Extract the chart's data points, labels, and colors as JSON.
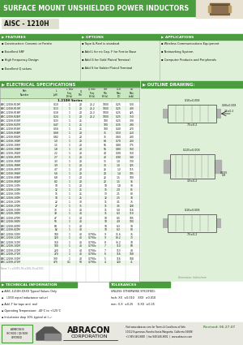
{
  "title": "SURFACE MOUNT UNSHIELDED POWER INDUCTORS",
  "part_family": "AISC - 1210H",
  "header_bg": "#4a9c3f",
  "header_text_color": "#ffffff",
  "page_bg": "#f0f0f0",
  "light_green_bg": "#dff0d8",
  "features_title": "FEATURES",
  "features": [
    "Construction: Ceramic or Ferrite",
    "Excellent SRF",
    "High Frequency Design",
    "Excellent Q values"
  ],
  "options_title": "OPTIONS",
  "options": [
    "Tape & Reel is standard",
    "Add L for no Cap, F for Ferrite Base",
    "Add G for Gold Plated Terminal",
    "Add S for Solder Plated Terminal"
  ],
  "applications_title": "APPLICATIONS",
  "applications": [
    "Wireless Communications Equipment",
    "Networking System",
    "Computer Products and Peripherals"
  ],
  "elec_spec_title": "ELECTRICAL SPECIFICATIONS",
  "outline_title": "OUTLINE DRAWING:",
  "table_col_widths": [
    52,
    14,
    14,
    10,
    14,
    14,
    14,
    13
  ],
  "table_headers": [
    "Part\nNumber",
    "L\n(µH)",
    "L Test\nFreq\n(MHz)",
    "Q\nMin",
    "Q Test\nFreq\n(MHz)",
    "SRF\nMin\n(MHz)",
    "DCR\nMax\n(O)",
    "Idc\nMax\n(mA)"
  ],
  "series_label": "1.210H Series",
  "table_data": [
    [
      "AISC-1210H-R10M",
      "0.10",
      "1",
      "20",
      "25.2",
      "1000",
      "0.25",
      "520"
    ],
    [
      "AISC-1210H-R13M",
      "0.13",
      "1",
      "20",
      "25.2",
      "1000",
      "0.25",
      "480"
    ],
    [
      "AISC-1210H-R18M",
      "0.18",
      "1",
      "20",
      "25.2",
      "1000",
      "0.25",
      "425"
    ],
    [
      "AISC-1210H-R24M",
      "0.24",
      "1",
      "20",
      "25.2",
      "1000",
      "0.25",
      "350"
    ],
    [
      "AISC-1210H-R33M",
      "0.33",
      "1",
      "25",
      "",
      "100",
      "0.25",
      "330"
    ],
    [
      "AISC-1210H-R47M",
      "0.47",
      "1",
      "25",
      "",
      "100",
      "0.35",
      "290"
    ],
    [
      "AISC-1210H-R56M",
      "0.56",
      "1",
      "25",
      "",
      "100",
      "0.40",
      "270"
    ],
    [
      "AISC-1210H-R68M",
      "0.68",
      "1",
      "20",
      "",
      "75",
      "0.50",
      "250"
    ],
    [
      "AISC-1210H-R82M",
      "0.82",
      "1",
      "20",
      "",
      "75",
      "0.60",
      "230"
    ],
    [
      "AISC-1210H-1R0M",
      "1.0",
      "1",
      "20",
      "",
      "64",
      "0.70",
      "200"
    ],
    [
      "AISC-1210H-1R5M",
      "1.5",
      "1",
      "20",
      "",
      "55",
      "0.80",
      "175"
    ],
    [
      "AISC-1210H-1R8M",
      "1.8",
      "1",
      "20",
      "",
      "55",
      "0.80",
      "160"
    ],
    [
      "AISC-1210H-2R2M",
      "2.2",
      "1",
      "20",
      "",
      "44",
      "0.90",
      "150"
    ],
    [
      "AISC-1210H-2R7M",
      "2.7",
      "1",
      "20",
      "",
      "40",
      "0.90",
      "140"
    ],
    [
      "AISC-1210H-3R3M",
      "3.3",
      "1",
      "20",
      "",
      "35",
      "1.0",
      "130"
    ],
    [
      "AISC-1210H-3R9M",
      "3.9",
      "1",
      "20",
      "",
      "30",
      "1.0",
      "125"
    ],
    [
      "AISC-1210H-4R7M",
      "4.7",
      "1",
      "20",
      "",
      "26",
      "1.2",
      "115"
    ],
    [
      "AISC-1210H-5R6M",
      "5.6",
      "1",
      "20",
      "",
      "24",
      "1.4",
      "105"
    ],
    [
      "AISC-1210H-6R8M",
      "6.8",
      "1",
      "20",
      "",
      "22",
      "1.5",
      "100"
    ],
    [
      "AISC-1210H-8R2M",
      "8.2",
      "1",
      "20",
      "",
      "20",
      "1.5",
      "95"
    ],
    [
      "AISC-1210H-100M",
      "10",
      "1",
      "20",
      "",
      "18",
      "1.8",
      "90"
    ],
    [
      "AISC-1210H-120M",
      "12",
      "1",
      "25",
      "",
      "15",
      "2.0",
      "85"
    ],
    [
      "AISC-1210H-150M",
      "15",
      "1",
      "25",
      "",
      "13",
      "2.1",
      "80"
    ],
    [
      "AISC-1210H-180M",
      "18",
      "1",
      "25",
      "",
      "12",
      "2.5",
      "78"
    ],
    [
      "AISC-1210H-220M",
      "22",
      "1",
      "30",
      "",
      "11",
      "3.1",
      "75"
    ],
    [
      "AISC-1210H-270M",
      "27",
      "1",
      "35",
      "",
      "11",
      "3.5",
      "128"
    ],
    [
      "AISC-1210H-330M",
      "33",
      "1",
      "40",
      "",
      "11",
      "5.0",
      "116"
    ],
    [
      "AISC-1210H-390M",
      "39",
      "1",
      "40",
      "",
      "11",
      "6.3",
      "110"
    ],
    [
      "AISC-1210H-470M",
      "47",
      "1",
      "40",
      "",
      "10",
      "6.5",
      "105"
    ],
    [
      "AISC-1210H-560M",
      "56",
      "1",
      "40",
      "",
      "10",
      "4.9",
      "100"
    ],
    [
      "AISC-1210H-680M",
      "68",
      "1",
      "40",
      "",
      "10",
      "6.3",
      "90"
    ],
    [
      "AISC-1210H-820M",
      "82",
      "1",
      "40",
      "",
      "10",
      "6.3",
      "80"
    ],
    [
      "AISC-1210H-101M",
      "100",
      "1",
      "40",
      "0.790x",
      "9",
      "71.6",
      "75"
    ],
    [
      "AISC-1210H-121M",
      "120",
      "1",
      "40",
      "0.790x",
      "9",
      "83.2",
      "73"
    ],
    [
      "AISC-1210H-151M",
      "150",
      "1",
      "40",
      "0.790x",
      "8",
      "91.2",
      "70"
    ],
    [
      "AISC-1210H-181M",
      "180",
      "1",
      "40",
      "0.790x",
      "7",
      "110",
      "60"
    ],
    [
      "AISC-1210H-221M",
      "220",
      "1",
      "40",
      "0.790x",
      "7",
      "113",
      "48"
    ],
    [
      "AISC-1210H-271M",
      "270",
      "1",
      "40",
      "0.790x",
      "6",
      "116",
      "168"
    ],
    [
      "AISC-1210H-331M",
      "330",
      "1",
      "40",
      "0.790x",
      "5",
      "116",
      "168"
    ],
    [
      "AISC-1210H-471M",
      "470",
      "0.1",
      "50",
      "0.790x",
      "4",
      "120",
      "41"
    ]
  ],
  "table_footnote": "Notes: T = ±0.05%, M=±20%, N=±0.05%",
  "tech_info_title": "TECHNICAL INFORMATION",
  "tech_notes": [
    "AISC-1210H-XXXX Typical Values Only",
    "  (-XXX equal inductance value)",
    "Add -T for tape and  reel",
    "Operating Temperature: -40°C to +125°C",
    "Inductance drop 10% typical at Iₘₐˣ"
  ],
  "tolerances_title": "TOLERANCES",
  "tol_lines": [
    "UNLESS OTHERWISE SPECIFIED:",
    "Inch: XX  ±0.010    XXX  ±0.010",
    "mm: X.X  ±0.25     X.XX  ±0.25"
  ],
  "dim_note": "Dimension: Inches/mm",
  "footer_bg": "#4a9c3f",
  "revised": "Revised: 06.27.07",
  "abracon_address": "10112 Esperanza, Rancho Santa Margarita, California 92688",
  "abracon_phone": "+1 949-546-8000  |  fax 949-546-8001  |  www.abracon.com"
}
